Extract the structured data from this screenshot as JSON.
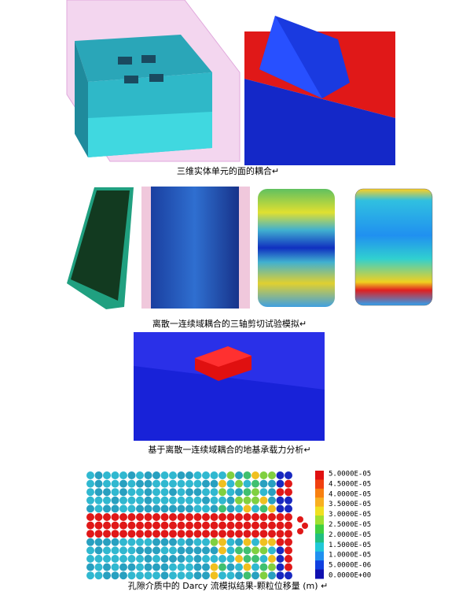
{
  "figures": [
    {
      "caption": "三维实体单元的面的耦合↵"
    },
    {
      "caption": "离散一连续域耦合的三轴剪切试验模拟↵"
    },
    {
      "caption": "基于离散一连续域耦合的地基承载力分析↵"
    },
    {
      "caption": "孔隙介质中的 Darcy 流模拟结果-颗粒位移量 (m) ↵"
    }
  ],
  "colorbar": {
    "labels": [
      "5.0000E-05",
      "4.5000E-05",
      "4.0000E-05",
      "3.5000E-05",
      "3.0000E-05",
      "2.5000E-05",
      "2.0000E-05",
      "1.5000E-05",
      "1.0000E-05",
      "5.0000E-06",
      "0.0000E+00"
    ]
  }
}
